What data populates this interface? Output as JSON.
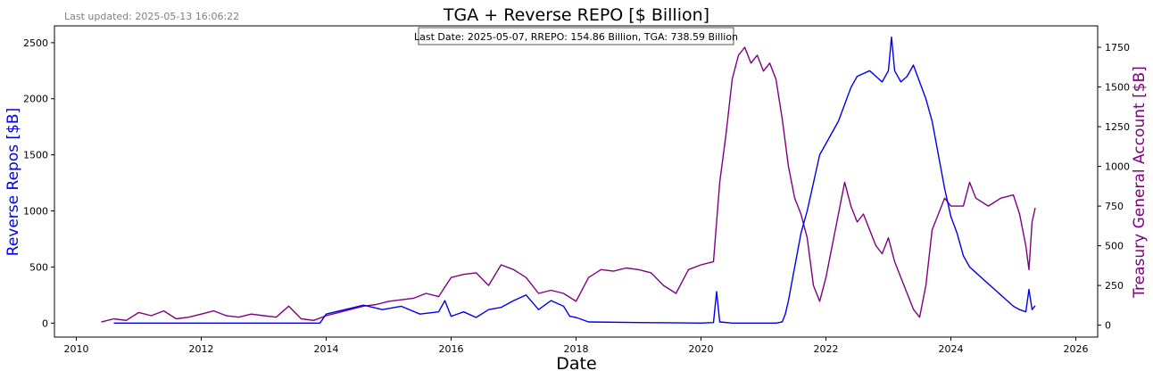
{
  "header": {
    "last_updated": "Last updated: 2025-05-13 16:06:22"
  },
  "chart_data": {
    "type": "line",
    "title": "TGA + Reverse REPO [$ Billion]",
    "annotation": "Last Date: 2025-05-07, RREPO: 154.86 Billion, TGA: 738.59 Billion",
    "xlabel": "Date",
    "ylabel_left": "Reverse Repos [$B]",
    "ylabel_right": "Treasury General Account [$B]",
    "x_ticks": [
      "2010",
      "2012",
      "2014",
      "2016",
      "2018",
      "2020",
      "2022",
      "2024",
      "2026"
    ],
    "y_left_ticks": [
      "0",
      "500",
      "1000",
      "1500",
      "2000",
      "2500"
    ],
    "y_right_ticks": [
      "0",
      "250",
      "500",
      "750",
      "1000",
      "1250",
      "1500",
      "1750"
    ],
    "xlim": [
      2009.65,
      2026.35
    ],
    "ylim_left": [
      -125,
      2650
    ],
    "ylim_right": [
      -75,
      1885
    ],
    "colors": {
      "rrepo": "#0000ee",
      "tga": "#800080",
      "axes": "#000000",
      "muted": "#808080"
    },
    "series": [
      {
        "name": "RREPO",
        "axis": "left",
        "points": [
          [
            2010.6,
            0
          ],
          [
            2012.0,
            0
          ],
          [
            2013.9,
            0
          ],
          [
            2014.0,
            80
          ],
          [
            2014.3,
            120
          ],
          [
            2014.6,
            160
          ],
          [
            2014.9,
            120
          ],
          [
            2015.2,
            150
          ],
          [
            2015.5,
            80
          ],
          [
            2015.8,
            100
          ],
          [
            2015.9,
            200
          ],
          [
            2016.0,
            60
          ],
          [
            2016.2,
            100
          ],
          [
            2016.4,
            50
          ],
          [
            2016.6,
            120
          ],
          [
            2016.8,
            140
          ],
          [
            2017.0,
            200
          ],
          [
            2017.2,
            250
          ],
          [
            2017.4,
            120
          ],
          [
            2017.6,
            200
          ],
          [
            2017.8,
            150
          ],
          [
            2017.9,
            60
          ],
          [
            2018.0,
            50
          ],
          [
            2018.2,
            10
          ],
          [
            2019.0,
            5
          ],
          [
            2020.0,
            0
          ],
          [
            2020.2,
            5
          ],
          [
            2020.25,
            280
          ],
          [
            2020.3,
            10
          ],
          [
            2020.5,
            0
          ],
          [
            2021.2,
            0
          ],
          [
            2021.3,
            10
          ],
          [
            2021.35,
            80
          ],
          [
            2021.4,
            200
          ],
          [
            2021.5,
            500
          ],
          [
            2021.6,
            800
          ],
          [
            2021.7,
            1000
          ],
          [
            2021.8,
            1250
          ],
          [
            2021.9,
            1500
          ],
          [
            2022.0,
            1600
          ],
          [
            2022.1,
            1700
          ],
          [
            2022.2,
            1800
          ],
          [
            2022.3,
            1950
          ],
          [
            2022.4,
            2100
          ],
          [
            2022.5,
            2200
          ],
          [
            2022.7,
            2250
          ],
          [
            2022.8,
            2200
          ],
          [
            2022.9,
            2150
          ],
          [
            2023.0,
            2250
          ],
          [
            2023.05,
            2550
          ],
          [
            2023.1,
            2250
          ],
          [
            2023.2,
            2150
          ],
          [
            2023.3,
            2200
          ],
          [
            2023.4,
            2300
          ],
          [
            2023.5,
            2150
          ],
          [
            2023.6,
            2000
          ],
          [
            2023.7,
            1800
          ],
          [
            2023.8,
            1500
          ],
          [
            2023.9,
            1200
          ],
          [
            2024.0,
            950
          ],
          [
            2024.1,
            800
          ],
          [
            2024.2,
            600
          ],
          [
            2024.3,
            500
          ],
          [
            2024.4,
            450
          ],
          [
            2024.5,
            400
          ],
          [
            2024.6,
            350
          ],
          [
            2024.7,
            300
          ],
          [
            2024.8,
            250
          ],
          [
            2024.9,
            200
          ],
          [
            2025.0,
            150
          ],
          [
            2025.1,
            120
          ],
          [
            2025.2,
            100
          ],
          [
            2025.25,
            300
          ],
          [
            2025.3,
            120
          ],
          [
            2025.35,
            154.86
          ]
        ]
      },
      {
        "name": "TGA",
        "axis": "right",
        "points": [
          [
            2010.4,
            20
          ],
          [
            2010.6,
            40
          ],
          [
            2010.8,
            30
          ],
          [
            2011.0,
            80
          ],
          [
            2011.2,
            60
          ],
          [
            2011.4,
            90
          ],
          [
            2011.6,
            40
          ],
          [
            2011.8,
            50
          ],
          [
            2012.0,
            70
          ],
          [
            2012.2,
            90
          ],
          [
            2012.4,
            60
          ],
          [
            2012.6,
            50
          ],
          [
            2012.8,
            70
          ],
          [
            2013.0,
            60
          ],
          [
            2013.2,
            50
          ],
          [
            2013.4,
            120
          ],
          [
            2013.6,
            40
          ],
          [
            2013.8,
            30
          ],
          [
            2014.0,
            60
          ],
          [
            2014.2,
            80
          ],
          [
            2014.4,
            100
          ],
          [
            2014.6,
            120
          ],
          [
            2014.8,
            130
          ],
          [
            2015.0,
            150
          ],
          [
            2015.2,
            160
          ],
          [
            2015.4,
            170
          ],
          [
            2015.6,
            200
          ],
          [
            2015.8,
            180
          ],
          [
            2016.0,
            300
          ],
          [
            2016.2,
            320
          ],
          [
            2016.4,
            330
          ],
          [
            2016.6,
            250
          ],
          [
            2016.8,
            380
          ],
          [
            2017.0,
            350
          ],
          [
            2017.2,
            300
          ],
          [
            2017.4,
            200
          ],
          [
            2017.6,
            220
          ],
          [
            2017.8,
            200
          ],
          [
            2018.0,
            150
          ],
          [
            2018.2,
            300
          ],
          [
            2018.4,
            350
          ],
          [
            2018.6,
            340
          ],
          [
            2018.8,
            360
          ],
          [
            2019.0,
            350
          ],
          [
            2019.2,
            330
          ],
          [
            2019.4,
            250
          ],
          [
            2019.6,
            200
          ],
          [
            2019.8,
            350
          ],
          [
            2020.0,
            380
          ],
          [
            2020.2,
            400
          ],
          [
            2020.3,
            900
          ],
          [
            2020.4,
            1200
          ],
          [
            2020.5,
            1550
          ],
          [
            2020.6,
            1700
          ],
          [
            2020.7,
            1750
          ],
          [
            2020.8,
            1650
          ],
          [
            2020.9,
            1700
          ],
          [
            2021.0,
            1600
          ],
          [
            2021.1,
            1650
          ],
          [
            2021.2,
            1550
          ],
          [
            2021.3,
            1300
          ],
          [
            2021.4,
            1000
          ],
          [
            2021.5,
            800
          ],
          [
            2021.6,
            700
          ],
          [
            2021.7,
            550
          ],
          [
            2021.8,
            250
          ],
          [
            2021.9,
            150
          ],
          [
            2022.0,
            300
          ],
          [
            2022.1,
            500
          ],
          [
            2022.2,
            700
          ],
          [
            2022.3,
            900
          ],
          [
            2022.4,
            750
          ],
          [
            2022.5,
            650
          ],
          [
            2022.6,
            700
          ],
          [
            2022.7,
            600
          ],
          [
            2022.8,
            500
          ],
          [
            2022.9,
            450
          ],
          [
            2023.0,
            550
          ],
          [
            2023.1,
            400
          ],
          [
            2023.2,
            300
          ],
          [
            2023.3,
            200
          ],
          [
            2023.4,
            100
          ],
          [
            2023.5,
            50
          ],
          [
            2023.6,
            250
          ],
          [
            2023.7,
            600
          ],
          [
            2023.8,
            700
          ],
          [
            2023.9,
            800
          ],
          [
            2024.0,
            750
          ],
          [
            2024.2,
            750
          ],
          [
            2024.3,
            900
          ],
          [
            2024.4,
            800
          ],
          [
            2024.6,
            750
          ],
          [
            2024.8,
            800
          ],
          [
            2025.0,
            820
          ],
          [
            2025.1,
            700
          ],
          [
            2025.2,
            500
          ],
          [
            2025.25,
            350
          ],
          [
            2025.3,
            650
          ],
          [
            2025.35,
            738.59
          ]
        ]
      }
    ],
    "grid": false,
    "legend": "none"
  }
}
